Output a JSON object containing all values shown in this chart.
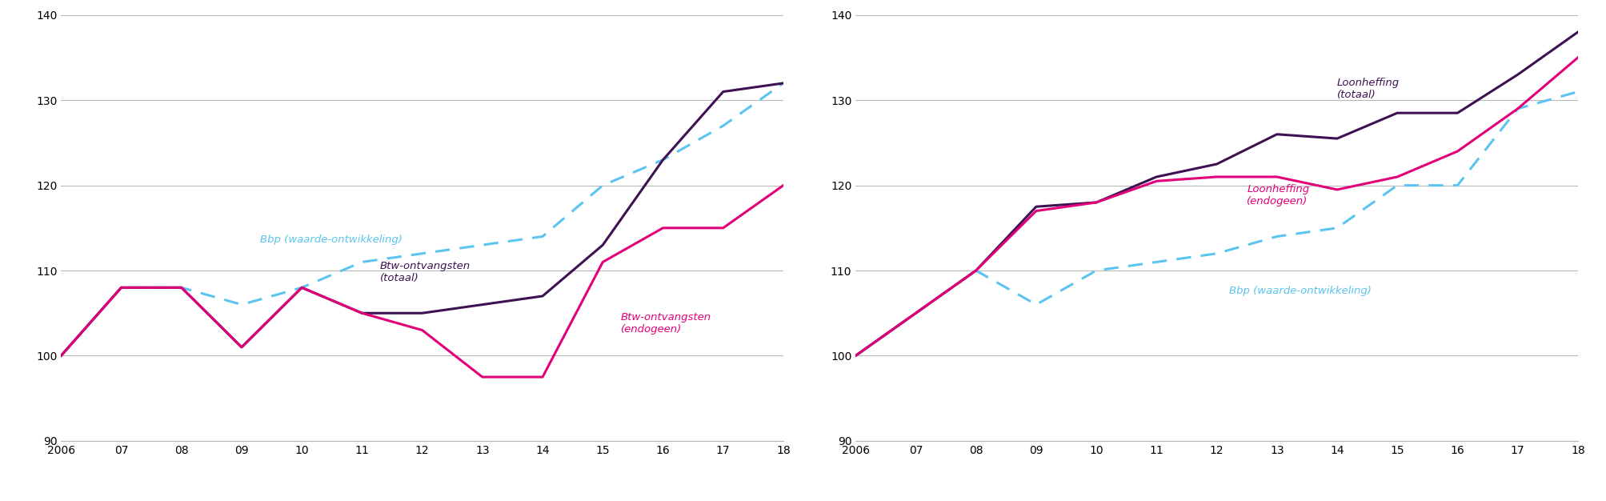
{
  "years": [
    2006,
    2007,
    2008,
    2009,
    2010,
    2011,
    2012,
    2013,
    2014,
    2015,
    2016,
    2017,
    2018
  ],
  "x_labels": [
    "2006",
    "07",
    "08",
    "09",
    "10",
    "11",
    "12",
    "13",
    "14",
    "15",
    "16",
    "17",
    "18"
  ],
  "left": {
    "bbp": [
      100,
      108,
      108,
      106,
      108,
      111,
      112,
      113,
      114,
      120,
      123,
      127,
      132
    ],
    "btw_totaal": [
      100,
      108,
      108,
      101,
      108,
      105,
      105,
      106,
      107,
      113,
      123,
      131,
      132
    ],
    "btw_endogeen": [
      100,
      108,
      108,
      101,
      108,
      105,
      103,
      97.5,
      97.5,
      111,
      115,
      115,
      120
    ],
    "labels": {
      "bbp": "Bbp (waarde-ontwikkeling)",
      "btw_totaal": "Btw-ontvangsten\n(totaal)",
      "btw_endogeen": "Btw-ontvangsten\n(endogeen)"
    },
    "label_positions": {
      "bbp": [
        2009.3,
        113.0
      ],
      "btw_totaal": [
        2011.3,
        108.5
      ],
      "btw_endogeen": [
        2015.3,
        102.5
      ]
    }
  },
  "right": {
    "bbp": [
      100,
      105,
      110,
      106,
      110,
      111,
      112,
      114,
      115,
      120,
      120,
      129,
      131
    ],
    "loon_totaal": [
      100,
      105,
      110,
      117.5,
      118,
      121,
      122.5,
      126,
      125.5,
      128.5,
      128.5,
      133,
      138
    ],
    "loon_endogeen": [
      100,
      105,
      110,
      117,
      118,
      120.5,
      121,
      121,
      119.5,
      121,
      124,
      129,
      135
    ],
    "labels": {
      "bbp": "Bbp (waarde-ontwikkeling)",
      "loon_totaal": "Loonheffing\n(totaal)",
      "loon_endogeen": "Loonheffing\n(endogeen)"
    },
    "label_positions": {
      "bbp": [
        2012.2,
        107.0
      ],
      "loon_totaal": [
        2014.0,
        130.0
      ],
      "loon_endogeen": [
        2012.5,
        117.5
      ]
    }
  },
  "colors": {
    "bbp": "#5bc4f0",
    "totaal": "#3d1152",
    "endogeen": "#e2007a"
  },
  "ylim": [
    90,
    140
  ],
  "yticks": [
    90,
    100,
    110,
    120,
    130,
    140
  ],
  "background_color": "#ffffff",
  "grid_color": "#b8b8b8",
  "label_fontsize": 9.5,
  "tick_fontsize": 10,
  "linewidth": 2.2
}
